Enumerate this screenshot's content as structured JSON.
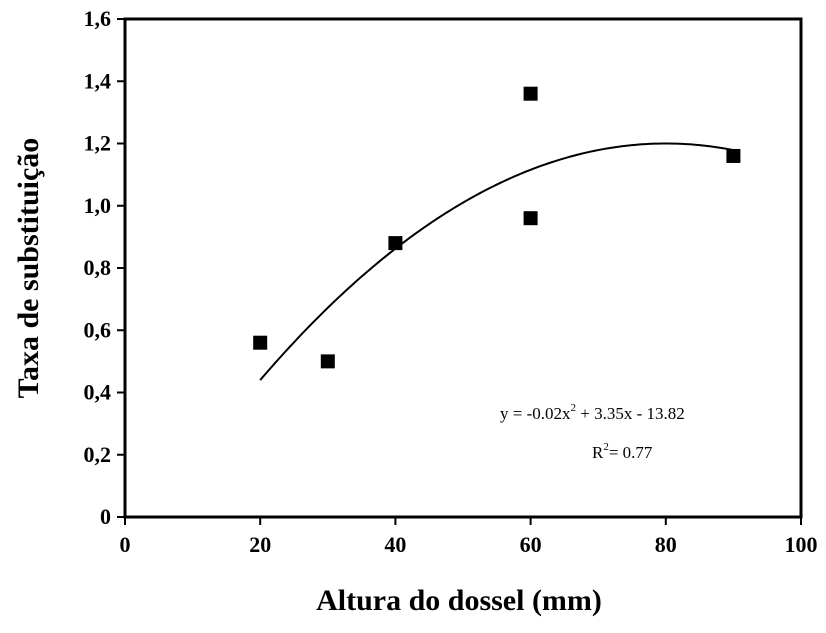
{
  "chart_data": {
    "type": "scatter",
    "title": "",
    "xlabel": "Altura do dossel (mm)",
    "ylabel": "Taxa de substituição",
    "xlim": [
      0,
      100
    ],
    "ylim": [
      0,
      1.6
    ],
    "xticks": [
      0,
      20,
      40,
      60,
      80,
      100
    ],
    "xtick_labels": [
      "0",
      "20",
      "40",
      "60",
      "80",
      "100"
    ],
    "yticks": [
      0,
      0.2,
      0.4,
      0.6,
      0.8,
      1.0,
      1.2,
      1.4,
      1.6
    ],
    "ytick_labels": [
      "0",
      "0,2",
      "0,4",
      "0,6",
      "0,8",
      "1,0",
      "1,2",
      "1,4",
      "1,6"
    ],
    "grid": false,
    "series": [
      {
        "marker": "square",
        "color": "#000000",
        "points": [
          {
            "x": 20,
            "y": 0.56
          },
          {
            "x": 30,
            "y": 0.5
          },
          {
            "x": 40,
            "y": 0.88
          },
          {
            "x": 60,
            "y": 1.36
          },
          {
            "x": 60,
            "y": 0.96
          },
          {
            "x": 90,
            "y": 1.16
          }
        ]
      }
    ],
    "trendline": {
      "kind": "quadratic",
      "x_range": [
        20,
        90
      ],
      "vertex": {
        "x": 80,
        "y": 1.2
      },
      "points": [
        {
          "x": 20,
          "y": 0.44
        },
        {
          "x": 40,
          "y": 0.86
        },
        {
          "x": 60,
          "y": 1.12
        },
        {
          "x": 80,
          "y": 1.2
        },
        {
          "x": 90,
          "y": 1.18
        }
      ]
    },
    "annotations": {
      "equation_prefix": "y = -0.02x",
      "equation_exp": "2",
      "equation_suffix": " + 3.35x - 13.82",
      "r2_prefix": "R",
      "r2_exp": "2",
      "r2_suffix": "= 0.77"
    }
  }
}
